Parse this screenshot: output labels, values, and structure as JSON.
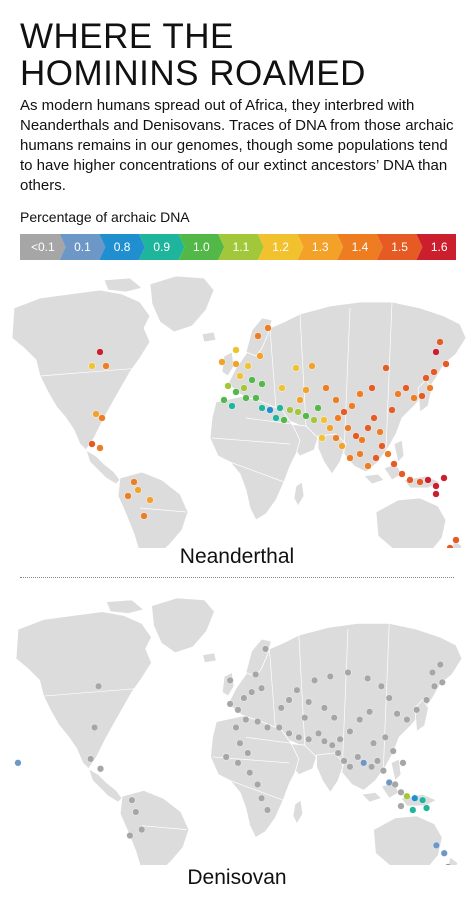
{
  "title_lines": [
    "WHERE THE",
    "HOMININS ROAMED"
  ],
  "intro": "As modern humans spread out of Africa, they interbred with Neanderthals and Denisovans. Traces of DNA from those archaic humans remains in our genomes, though some populations tend to have higher concentrations of our extinct ancestors’ DNA than others.",
  "legend": {
    "title": "Percentage of archaic DNA",
    "items": [
      {
        "label": "<0.1",
        "color": "#a6a6a6"
      },
      {
        "label": "0.1",
        "color": "#6c97c6"
      },
      {
        "label": "0.8",
        "color": "#1f8fd0"
      },
      {
        "label": "0.9",
        "color": "#1fb59d"
      },
      {
        "label": "1.0",
        "color": "#52b848"
      },
      {
        "label": "1.1",
        "color": "#a2c73b"
      },
      {
        "label": "1.2",
        "color": "#f2c12e"
      },
      {
        "label": "1.3",
        "color": "#f4a12a"
      },
      {
        "label": "1.4",
        "color": "#ee7d22"
      },
      {
        "label": "1.5",
        "color": "#e65a24"
      },
      {
        "label": "1.6",
        "color": "#cc1f2e"
      }
    ]
  },
  "maps": [
    {
      "label": "Neanderthal"
    },
    {
      "label": "Denisovan"
    }
  ]
}
